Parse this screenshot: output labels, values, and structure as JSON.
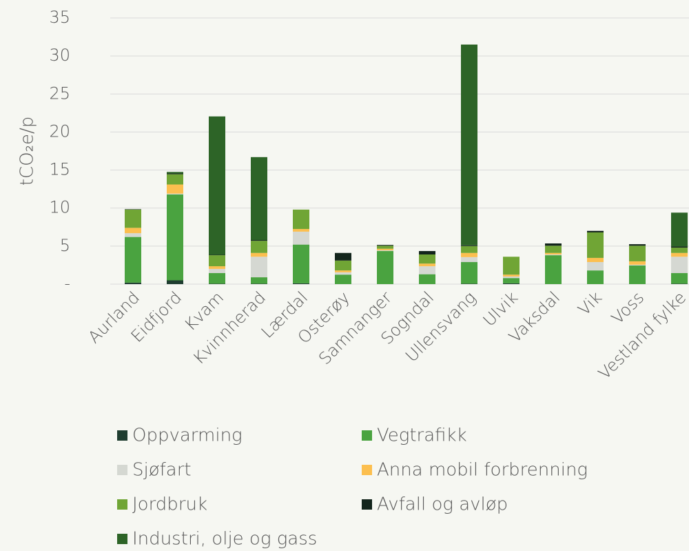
{
  "chart_data": {
    "type": "stacked_bar",
    "y_label": "tCO₂e/p",
    "categories": [
      "Aurland",
      "Eidfjord",
      "Kvam",
      "Kvinnherad",
      "Lærdal",
      "Osterøy",
      "Samnanger",
      "Sogndal",
      "Ullensvang",
      "Ulvik",
      "Vaksdal",
      "Vik",
      "Voss",
      "Vestland fylke"
    ],
    "series": [
      {
        "name": "Oppvarming",
        "color": "#1f3d30",
        "values": [
          0.2,
          0.5,
          0.05,
          0.05,
          0.1,
          0,
          0,
          0,
          0.05,
          0.1,
          0,
          0,
          0,
          0.05
        ]
      },
      {
        "name": "Vegtrafikk",
        "color": "#4aa340",
        "values": [
          6.0,
          11.3,
          1.4,
          0.85,
          5.1,
          1.25,
          4.35,
          1.3,
          2.85,
          0.7,
          3.8,
          1.8,
          2.45,
          1.4
        ]
      },
      {
        "name": "Sjøfart",
        "color": "#d5d8d2",
        "values": [
          0.5,
          0.1,
          0.55,
          2.7,
          1.7,
          0.3,
          0.1,
          1.05,
          0.65,
          0.2,
          0.1,
          1.1,
          0.1,
          2.15
        ]
      },
      {
        "name": "Anna mobil forbrenning",
        "color": "#fcbf4f",
        "values": [
          0.7,
          1.2,
          0.35,
          0.5,
          0.35,
          0.25,
          0.2,
          0.35,
          0.55,
          0.25,
          0.2,
          0.55,
          0.45,
          0.5
        ]
      },
      {
        "name": "Jordbruk",
        "color": "#70a535",
        "values": [
          2.4,
          1.35,
          1.45,
          1.6,
          2.55,
          1.3,
          0.4,
          1.2,
          0.9,
          2.35,
          0.95,
          3.35,
          2.05,
          0.7
        ]
      },
      {
        "name": "Avfall og avløp",
        "color": "#13251c",
        "values": [
          0.05,
          0.1,
          0.05,
          0.1,
          0,
          1.0,
          0.1,
          0.45,
          0.1,
          0,
          0.3,
          0.2,
          0.2,
          0.15
        ]
      },
      {
        "name": "Industri, olje og gass",
        "color": "#2d6427",
        "values": [
          0,
          0.2,
          18.2,
          10.9,
          0,
          0,
          0,
          0,
          26.4,
          0,
          0,
          0,
          0,
          4.45
        ]
      }
    ],
    "ylim": [
      0,
      35
    ],
    "yticks": [
      {
        "value": 0,
        "label": "-"
      },
      5,
      10,
      15,
      20,
      25,
      30,
      35
    ],
    "grid": true
  }
}
